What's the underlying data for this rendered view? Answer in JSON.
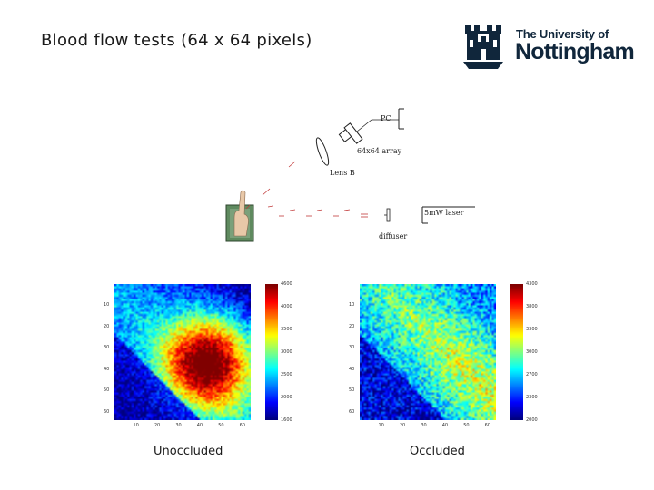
{
  "slide": {
    "title": "Blood flow tests (64 x 64 pixels)"
  },
  "logo": {
    "line1": "The University of",
    "line2": "Nottingham",
    "color": "#10263b"
  },
  "diagram": {
    "labels": {
      "pc": "PC",
      "array": "64x64 array",
      "lens": "Lens B",
      "laser": "5mW laser",
      "diffuser": "diffuser"
    },
    "icons": [
      "finger-photo-icon",
      "camera-icon",
      "lens-icon",
      "laser-icon",
      "diffuser-icon"
    ]
  },
  "chart_data": [
    {
      "type": "heatmap",
      "name": "Unoccluded",
      "grid": [
        64,
        64
      ],
      "x_ticks": [
        "10",
        "20",
        "30",
        "40",
        "50",
        "60"
      ],
      "y_ticks": [
        "10",
        "20",
        "30",
        "40",
        "50",
        "60"
      ],
      "colorbar_ticks": [
        "4600",
        "4000",
        "3500",
        "3000",
        "2500",
        "2000",
        "1600"
      ],
      "colormap": "jet",
      "caption": "Unoccluded"
    },
    {
      "type": "heatmap",
      "name": "Occluded",
      "grid": [
        64,
        64
      ],
      "x_ticks": [
        "10",
        "20",
        "30",
        "40",
        "50",
        "60"
      ],
      "y_ticks": [
        "10",
        "20",
        "30",
        "40",
        "50",
        "60"
      ],
      "colorbar_ticks": [
        "4300",
        "3800",
        "3300",
        "3000",
        "2700",
        "2300",
        "2000"
      ],
      "colormap": "jet",
      "caption": "Occluded"
    }
  ]
}
